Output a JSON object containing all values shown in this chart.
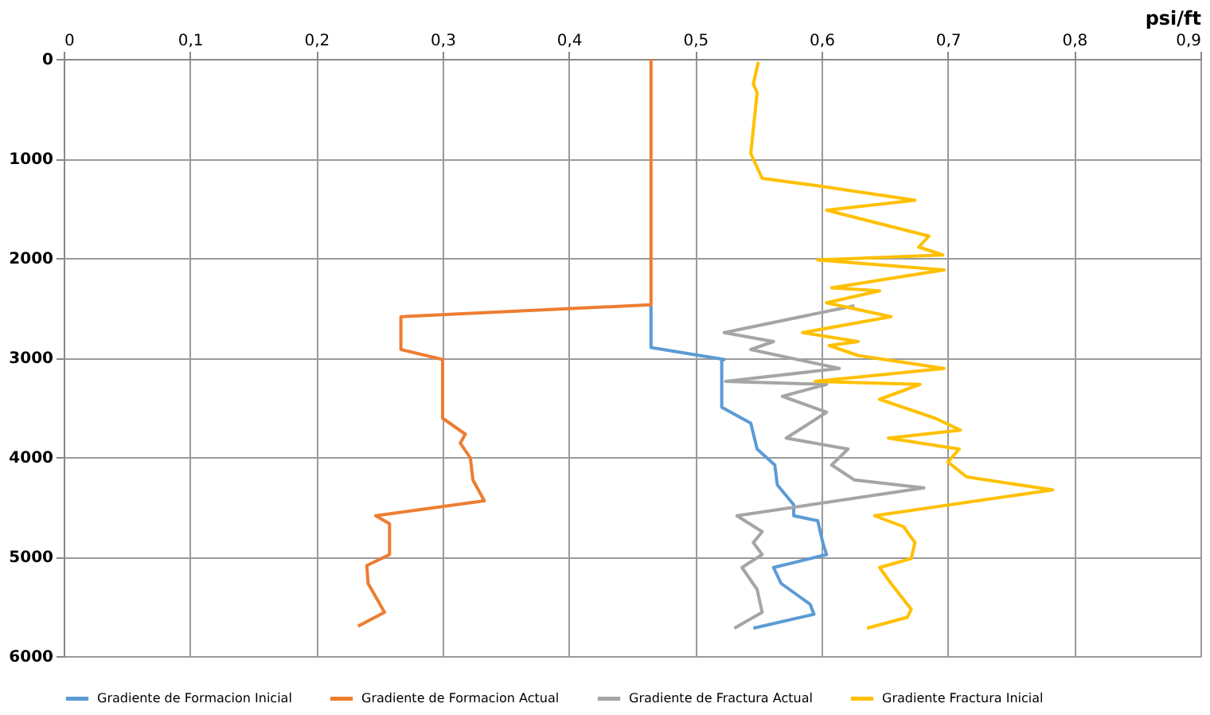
{
  "chart_data": {
    "type": "line",
    "xlabel": "psi/ft",
    "xlim": [
      0,
      0.9
    ],
    "xticks": [
      0,
      {
        "value": 0.1,
        "label": "0,1"
      },
      {
        "value": 0.2,
        "label": "0,2"
      },
      {
        "value": 0.3,
        "label": "0,3"
      },
      {
        "value": 0.4,
        "label": "0,4"
      },
      {
        "value": 0.5,
        "label": "0,5"
      },
      {
        "value": 0.6,
        "label": "0,6"
      },
      {
        "value": 0.7,
        "label": "0,7"
      },
      {
        "value": 0.8,
        "label": "0,8"
      },
      {
        "value": 0.9,
        "label": "0,9"
      }
    ],
    "ylim": [
      6000,
      0
    ],
    "yticks": [
      0,
      1000,
      2000,
      3000,
      4000,
      5000,
      6000
    ],
    "grid": true,
    "legend": "bottom",
    "marker": "none",
    "line_style": "solid",
    "series": [
      {
        "name": "Gradiente de Formacion Inicial",
        "color": "#5b9bd5",
        "x": [
          0.465,
          0.465,
          0.523,
          0.521,
          0.521,
          0.544,
          0.549,
          0.563,
          0.565,
          0.578,
          0.578,
          0.597,
          0.601,
          0.604,
          0.562,
          0.568,
          0.591,
          0.594,
          0.546
        ],
        "values": [
          2480,
          2900,
          3020,
          3030,
          3500,
          3660,
          3920,
          4080,
          4280,
          4480,
          4590,
          4640,
          4860,
          4980,
          5110,
          5270,
          5480,
          5580,
          5720
        ]
      },
      {
        "name": "Gradiente de Formacion Actual",
        "color": "#ed7d31",
        "x": [
          0.465,
          0.465,
          0.267,
          0.267,
          0.3,
          0.3,
          0.318,
          0.314,
          0.322,
          0.324,
          0.333,
          0.247,
          0.258,
          0.258,
          0.24,
          0.241,
          0.254,
          0.233
        ],
        "values": [
          0,
          2470,
          2590,
          2920,
          3020,
          3610,
          3770,
          3860,
          4010,
          4230,
          4440,
          4590,
          4670,
          4980,
          5090,
          5270,
          5560,
          5700
        ]
      },
      {
        "name": "Gradiente de Fractura Actual",
        "color": "#a5a5a5",
        "x": [
          0.626,
          0.523,
          0.562,
          0.544,
          0.614,
          0.524,
          0.604,
          0.569,
          0.604,
          0.572,
          0.621,
          0.608,
          0.626,
          0.681,
          0.533,
          0.553,
          0.546,
          0.553,
          0.537,
          0.549,
          0.553,
          0.531
        ],
        "values": [
          2480,
          2750,
          2840,
          2920,
          3110,
          3240,
          3270,
          3390,
          3550,
          3810,
          3920,
          4080,
          4230,
          4310,
          4590,
          4750,
          4860,
          4980,
          5110,
          5330,
          5560,
          5720
        ]
      },
      {
        "name": "Gradiente Fractura Inicial",
        "color": "#ffc000",
        "x": [
          0.55,
          0.546,
          0.549,
          0.544,
          0.553,
          0.6,
          0.674,
          0.604,
          0.685,
          0.677,
          0.696,
          0.597,
          0.697,
          0.608,
          0.646,
          0.604,
          0.655,
          0.585,
          0.629,
          0.606,
          0.629,
          0.697,
          0.595,
          0.678,
          0.646,
          0.69,
          0.71,
          0.653,
          0.709,
          0.7,
          0.715,
          0.783,
          0.642,
          0.665,
          0.674,
          0.671,
          0.646,
          0.655,
          0.671,
          0.668,
          0.636
        ],
        "values": [
          30,
          250,
          340,
          950,
          1200,
          1280,
          1420,
          1520,
          1780,
          1890,
          1970,
          2020,
          2120,
          2300,
          2330,
          2450,
          2590,
          2750,
          2840,
          2880,
          2980,
          3110,
          3240,
          3270,
          3420,
          3610,
          3730,
          3810,
          3920,
          4050,
          4200,
          4330,
          4590,
          4700,
          4860,
          5020,
          5110,
          5270,
          5530,
          5610,
          5720
        ]
      }
    ]
  }
}
